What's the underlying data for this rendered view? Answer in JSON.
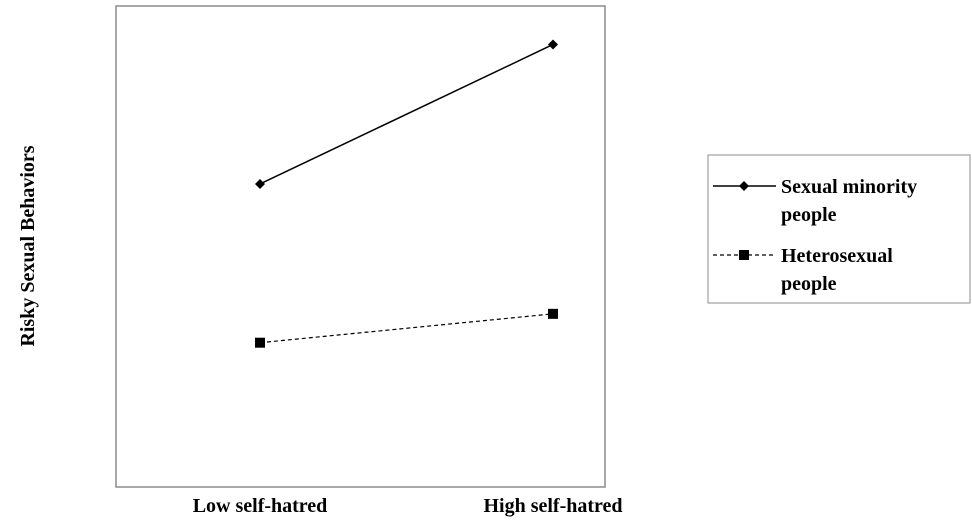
{
  "chart_data": {
    "type": "line",
    "title": "",
    "xlabel": "",
    "ylabel": "Risky Sexual Behaviors",
    "categories": [
      "Low self-hatred",
      "High self-hatred"
    ],
    "ylim": [
      0,
      10
    ],
    "grid": false,
    "legend_position": "right",
    "series": [
      {
        "name": "Sexual minority people",
        "legend_lines": [
          "Sexual minority",
          "people"
        ],
        "values": [
          6.3,
          9.2
        ],
        "marker": "diamond",
        "line_style": "solid",
        "color": "#000000"
      },
      {
        "name": "Heterosexual people",
        "legend_lines": [
          "Heterosexual",
          "people"
        ],
        "values": [
          3.0,
          3.6
        ],
        "marker": "square",
        "line_style": "dashed",
        "color": "#000000"
      }
    ]
  }
}
